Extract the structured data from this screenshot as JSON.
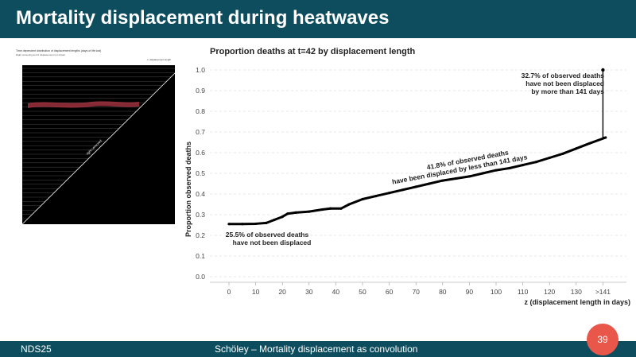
{
  "slide": {
    "title": "Mortality displacement during heatwaves",
    "footer_left": "NDS25",
    "footer_center": "Schöley – Mortality displacement as convolution",
    "page_number": "39"
  },
  "thumbnail": {
    "title": "Time dependent distribution of displacement lengths (days of life lost)",
    "subtitle": "Right censoring and 0 displacement not shown",
    "corner_label": "z, displacement length",
    "diagonal_label": "right censored",
    "colors": {
      "background": "#000000",
      "frame": "#ffffff",
      "highlight": "#c0394b"
    }
  },
  "chart_data": {
    "type": "line",
    "title": "Proportion deaths at t=42 by displacement length",
    "xlabel": "z (displacement length in days)",
    "ylabel": "Proportion observed deaths",
    "ylim": [
      0,
      1.0
    ],
    "x_ticks": [
      "0",
      "10",
      "20",
      "30",
      "40",
      "50",
      "60",
      "70",
      "80",
      "90",
      "100",
      "110",
      "120",
      "130",
      ">141"
    ],
    "y_ticks": [
      "0.0",
      "0.1",
      "0.2",
      "0.3",
      "0.4",
      "0.5",
      "0.6",
      "0.7",
      "0.8",
      "0.9",
      "1.0"
    ],
    "grid": "horizontal dashed",
    "series": [
      {
        "x": [
          0,
          5,
          10,
          14,
          17,
          20,
          22,
          25,
          30,
          35,
          38,
          42,
          45,
          50,
          55,
          60,
          65,
          70,
          75,
          80,
          85,
          90,
          95,
          100,
          105,
          110,
          115,
          120,
          125,
          130,
          135,
          141
        ],
        "y": [
          0.255,
          0.255,
          0.256,
          0.26,
          0.275,
          0.29,
          0.305,
          0.31,
          0.315,
          0.325,
          0.33,
          0.33,
          0.35,
          0.375,
          0.39,
          0.405,
          0.42,
          0.435,
          0.45,
          0.465,
          0.475,
          0.485,
          0.5,
          0.515,
          0.525,
          0.54,
          0.555,
          0.575,
          0.595,
          0.62,
          0.645,
          0.673
        ],
        "color": "#000000"
      }
    ],
    "censored": {
      "x": ">141",
      "y_from": 0.673,
      "y_to": 1.0
    },
    "annotations": [
      {
        "line1": "25.5% of observed deaths",
        "line2": "have not been displaced"
      },
      {
        "line1": "41.8% of observed deaths",
        "line2": "have been displaced by less than 141 days"
      },
      {
        "line1": "32.7% of observed deaths",
        "line2": "have not been displaced",
        "line3": "by more than 141 days"
      }
    ]
  }
}
